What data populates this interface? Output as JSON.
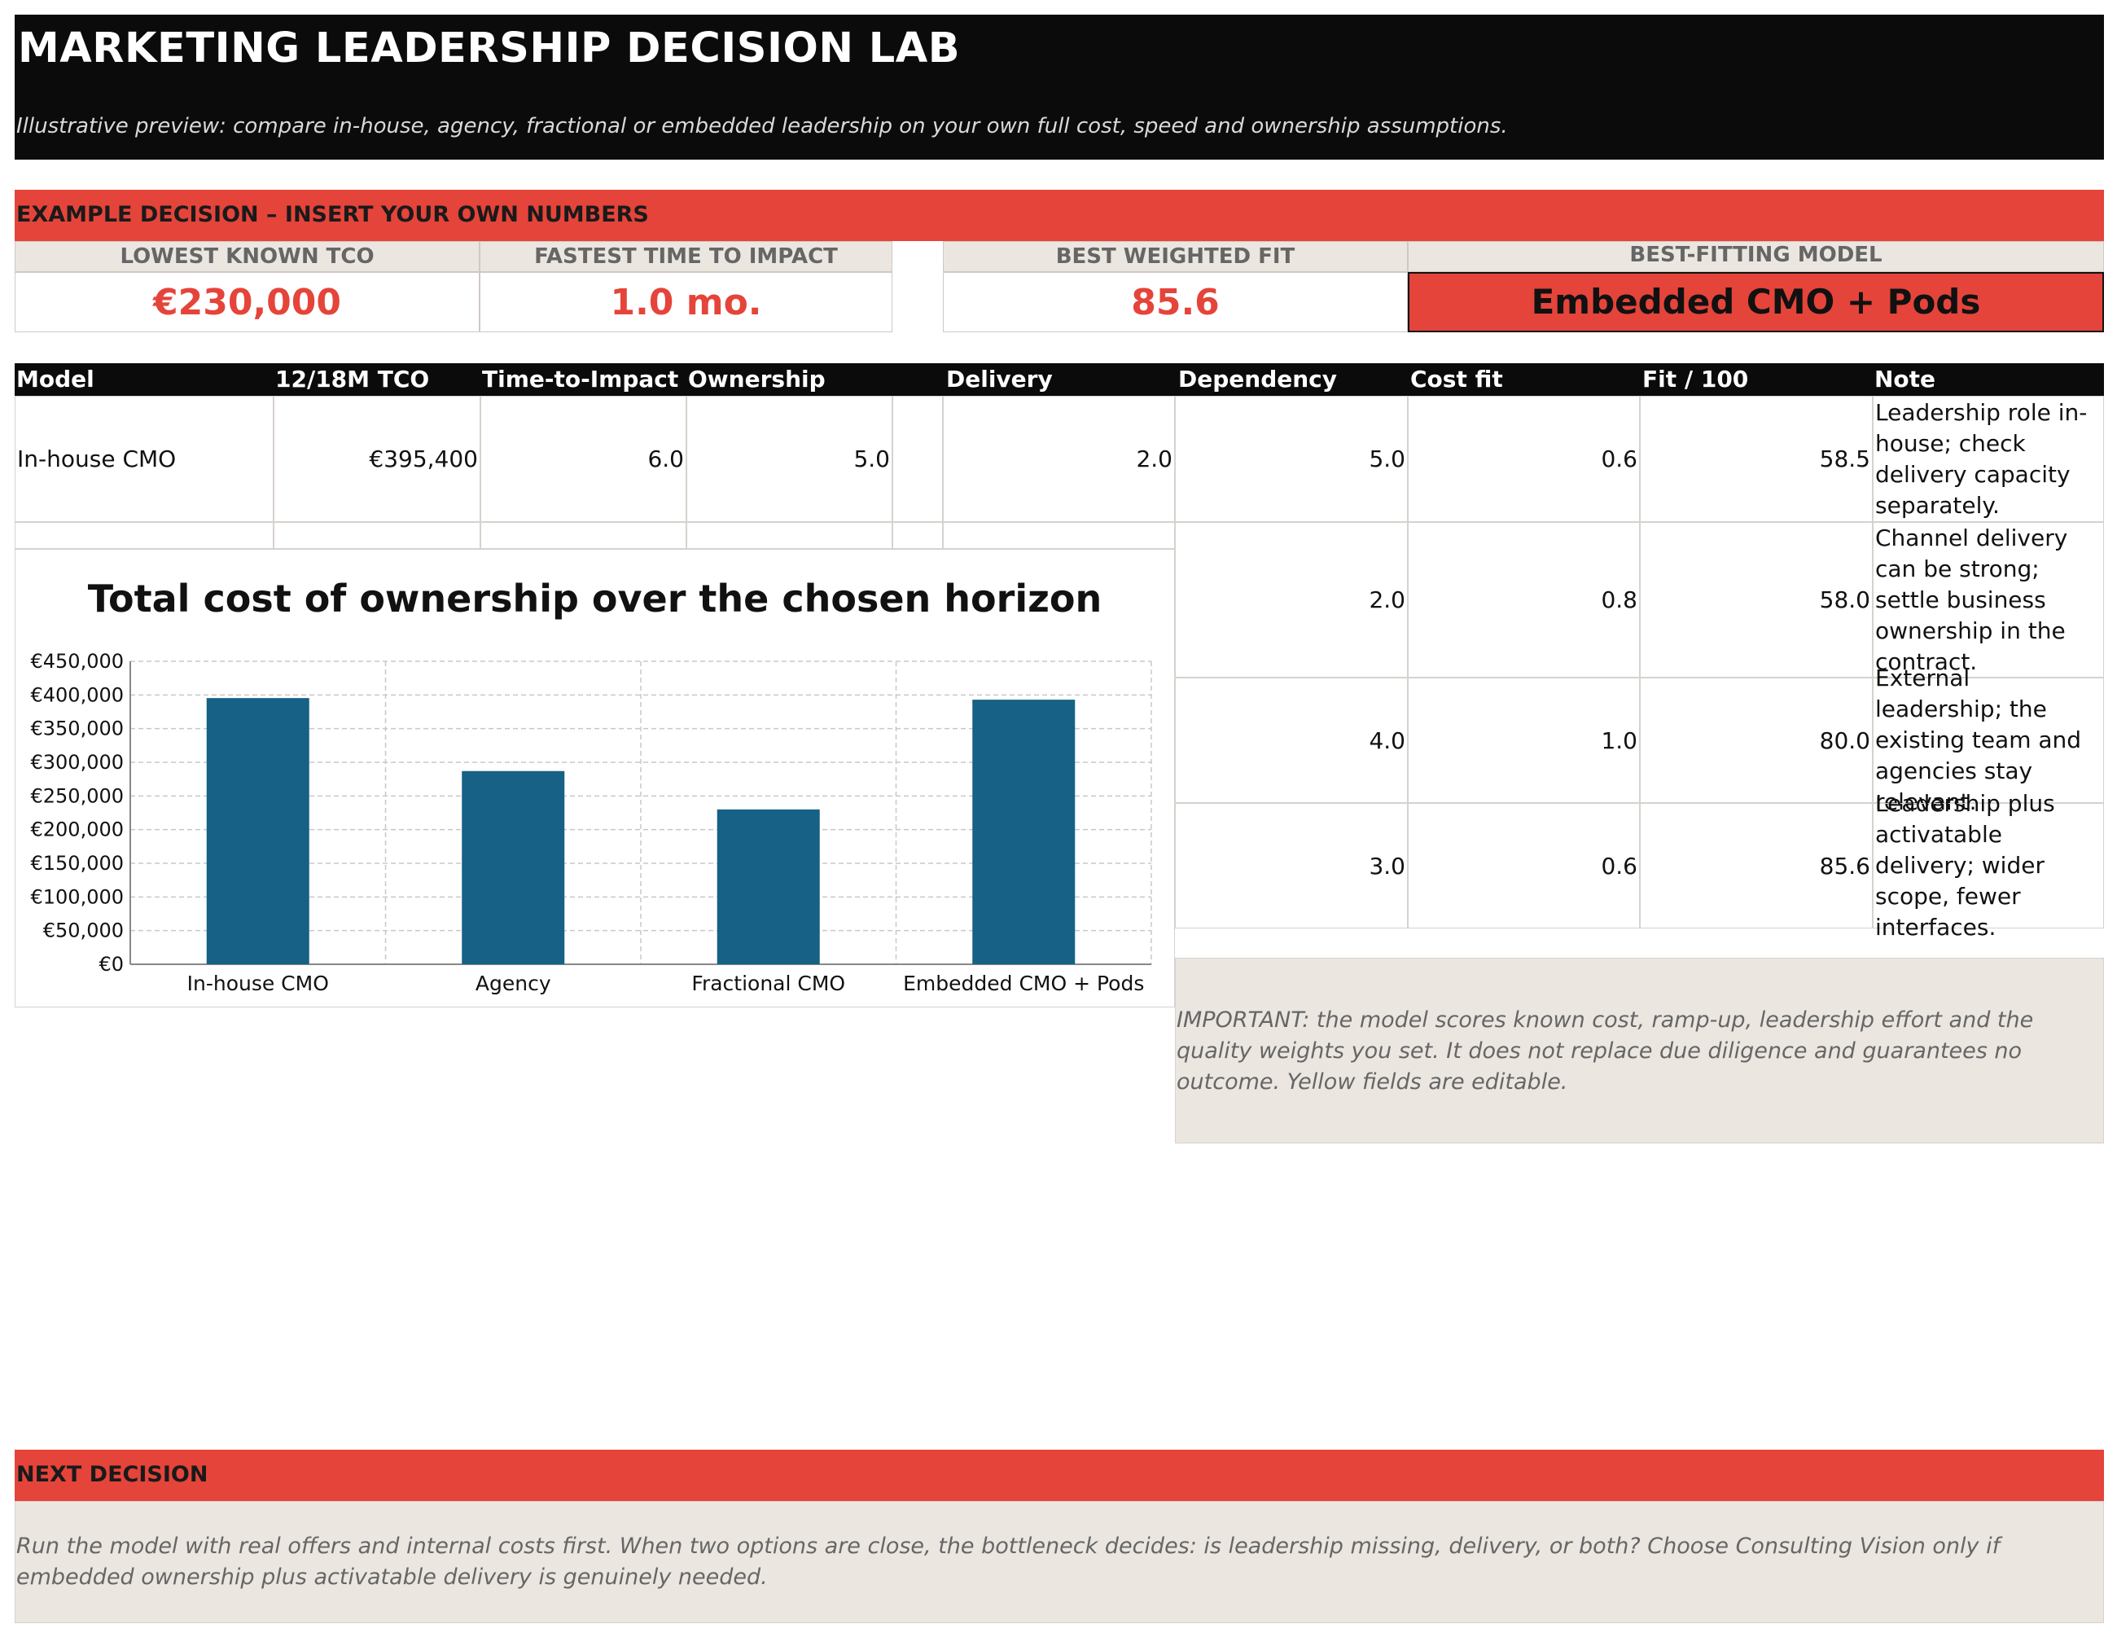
{
  "header": {
    "title": "MARKETING LEADERSHIP DECISION LAB",
    "subtitle": "Illustrative preview: compare in-house, agency, fractional or embedded leadership on your own full cost, speed and ownership assumptions."
  },
  "example_banner": "EXAMPLE DECISION – INSERT YOUR OWN NUMBERS",
  "kpis": [
    {
      "label": "LOWEST KNOWN TCO",
      "value": "€230,000"
    },
    {
      "label": "FASTEST TIME TO IMPACT",
      "value": "1.0 mo."
    },
    {
      "label": "BEST WEIGHTED FIT",
      "value": "85.6"
    },
    {
      "label": "BEST-FITTING MODEL",
      "value": "Embedded CMO + Pods"
    }
  ],
  "table": {
    "columns": [
      "Model",
      "12/18M TCO",
      "Time-to-Impact",
      "Ownership",
      "Delivery",
      "Dependency",
      "Cost fit",
      "Fit / 100",
      "Note"
    ],
    "row1": {
      "model": "In-house CMO",
      "tco": "€395,400",
      "time": "6.0",
      "ownership": "5.0",
      "delivery": "2.0",
      "dependency": "5.0",
      "costfit": "0.6",
      "fit": "58.5",
      "note": "Leadership role in-house; check delivery capacity separately."
    },
    "partial_rows": [
      {
        "dependency": "2.0",
        "costfit": "0.8",
        "fit": "58.0",
        "note": "Channel delivery can be strong; settle business ownership in the contract."
      },
      {
        "dependency": "4.0",
        "costfit": "1.0",
        "fit": "80.0",
        "note": "External leadership; the existing team and agencies stay relevant."
      },
      {
        "dependency": "3.0",
        "costfit": "0.6",
        "fit": "85.6",
        "note": "Leadership plus activatable delivery; wider scope, fewer interfaces."
      }
    ]
  },
  "chart_data": {
    "type": "bar",
    "title": "Total cost of ownership over the chosen horizon",
    "categories": [
      "In-house CMO",
      "Agency",
      "Fractional CMO",
      "Embedded CMO + Pods"
    ],
    "values": [
      395400,
      287000,
      230000,
      393000
    ],
    "ylim": [
      0,
      450000
    ],
    "yticks": [
      "€0",
      "€50,000",
      "€100,000",
      "€150,000",
      "€200,000",
      "€250,000",
      "€300,000",
      "€350,000",
      "€400,000",
      "€450,000"
    ],
    "xlabel": "",
    "ylabel": "",
    "grid": true,
    "bar_color": "#166185"
  },
  "important_note": "IMPORTANT: the model scores known cost, ramp-up, leadership effort and the quality weights you set. It does not replace due diligence and guarantees no outcome. Yellow fields are editable.",
  "next_decision": {
    "label": "NEXT DECISION",
    "text": "Run the model with real offers and internal costs first. When two options are close, the bottleneck decides: is leadership missing, delivery, or both? Choose Consulting Vision only if embedded ownership plus activatable delivery is genuinely needed."
  },
  "colors": {
    "accent": "#e5443a",
    "header_bg": "#0b0b0b",
    "panel_bg": "#ebe6e0",
    "bar": "#166185"
  }
}
